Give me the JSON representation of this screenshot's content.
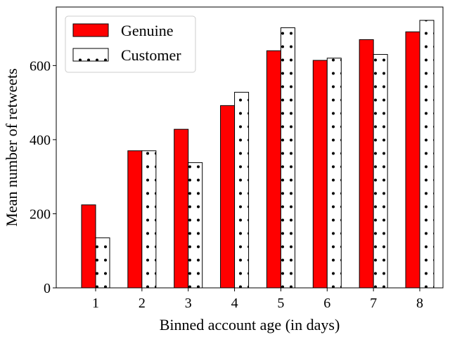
{
  "chart_data": {
    "type": "bar",
    "categories": [
      "1",
      "2",
      "3",
      "4",
      "5",
      "6",
      "7",
      "8"
    ],
    "series": [
      {
        "name": "Genuine",
        "values": [
          224,
          370,
          428,
          492,
          640,
          614,
          670,
          691
        ],
        "color": "#ff0000",
        "pattern": "solid"
      },
      {
        "name": "Customer",
        "values": [
          135,
          370,
          338,
          528,
          702,
          620,
          630,
          722
        ],
        "color": "#ffffff",
        "pattern": "dots"
      }
    ],
    "title": "",
    "xlabel": "Binned account age (in days)",
    "ylabel": "Mean number of retweets",
    "ylim": [
      0,
      758
    ],
    "yticks": [
      0,
      200,
      400,
      600
    ],
    "grid": false,
    "legend_position": "top-left"
  }
}
